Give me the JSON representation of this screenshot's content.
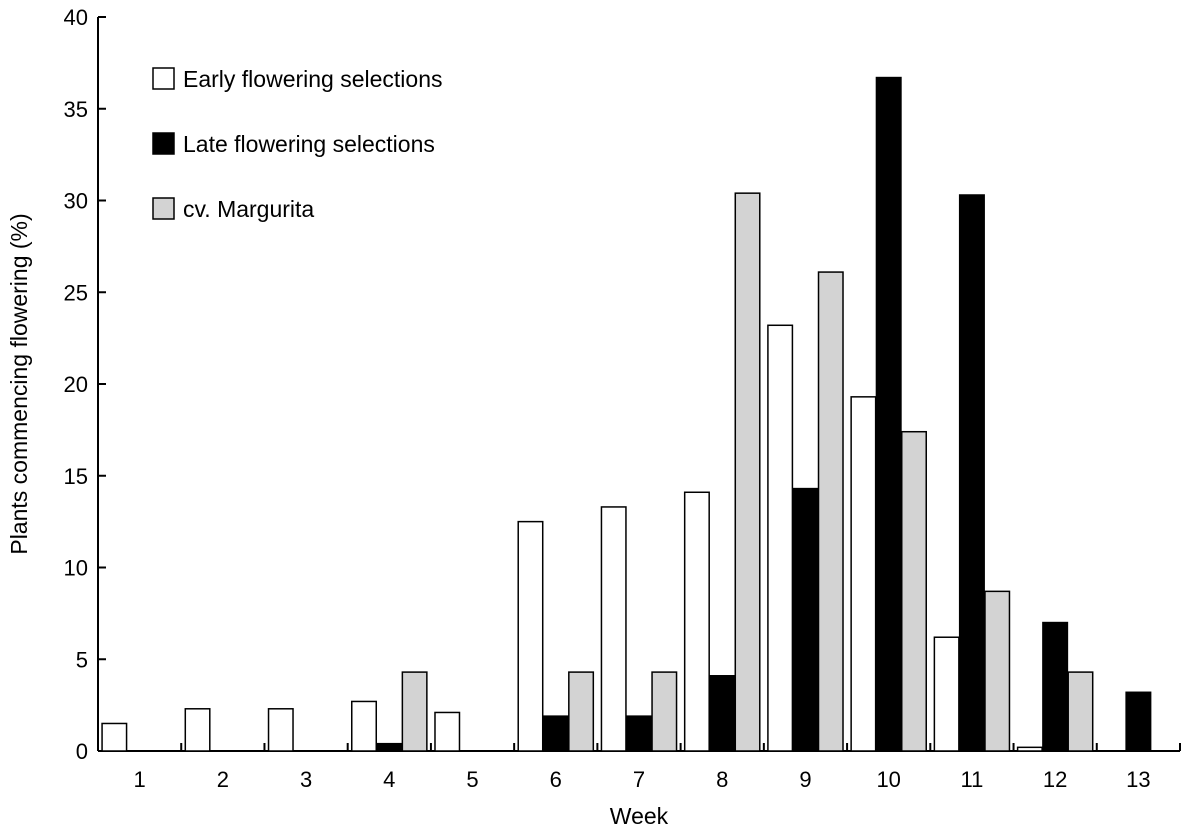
{
  "chart_data": {
    "type": "bar",
    "title": "",
    "xlabel": "Week",
    "ylabel": "Plants commencing flowering (%)",
    "ylim": [
      0,
      40
    ],
    "yticks": [
      0,
      5,
      10,
      15,
      20,
      25,
      30,
      35,
      40
    ],
    "categories": [
      "1",
      "2",
      "3",
      "4",
      "5",
      "6",
      "7",
      "8",
      "9",
      "10",
      "11",
      "12",
      "13"
    ],
    "series": [
      {
        "name": "Early flowering selections",
        "color": "#ffffff",
        "values": [
          1.5,
          2.3,
          2.3,
          2.7,
          2.1,
          12.5,
          13.3,
          14.1,
          23.2,
          19.3,
          6.2,
          0.2,
          0
        ]
      },
      {
        "name": "Late flowering selections",
        "color": "#000000",
        "values": [
          0,
          0,
          0,
          0.4,
          0,
          1.9,
          1.9,
          4.1,
          14.3,
          36.7,
          30.3,
          7.0,
          3.2
        ]
      },
      {
        "name": "cv. Margurita",
        "color": "#d3d3d3",
        "values": [
          0,
          0,
          0,
          4.3,
          0,
          4.3,
          4.3,
          30.4,
          26.1,
          17.4,
          8.7,
          4.3,
          0
        ]
      }
    ],
    "legend_position": "top-left",
    "grid": false
  }
}
